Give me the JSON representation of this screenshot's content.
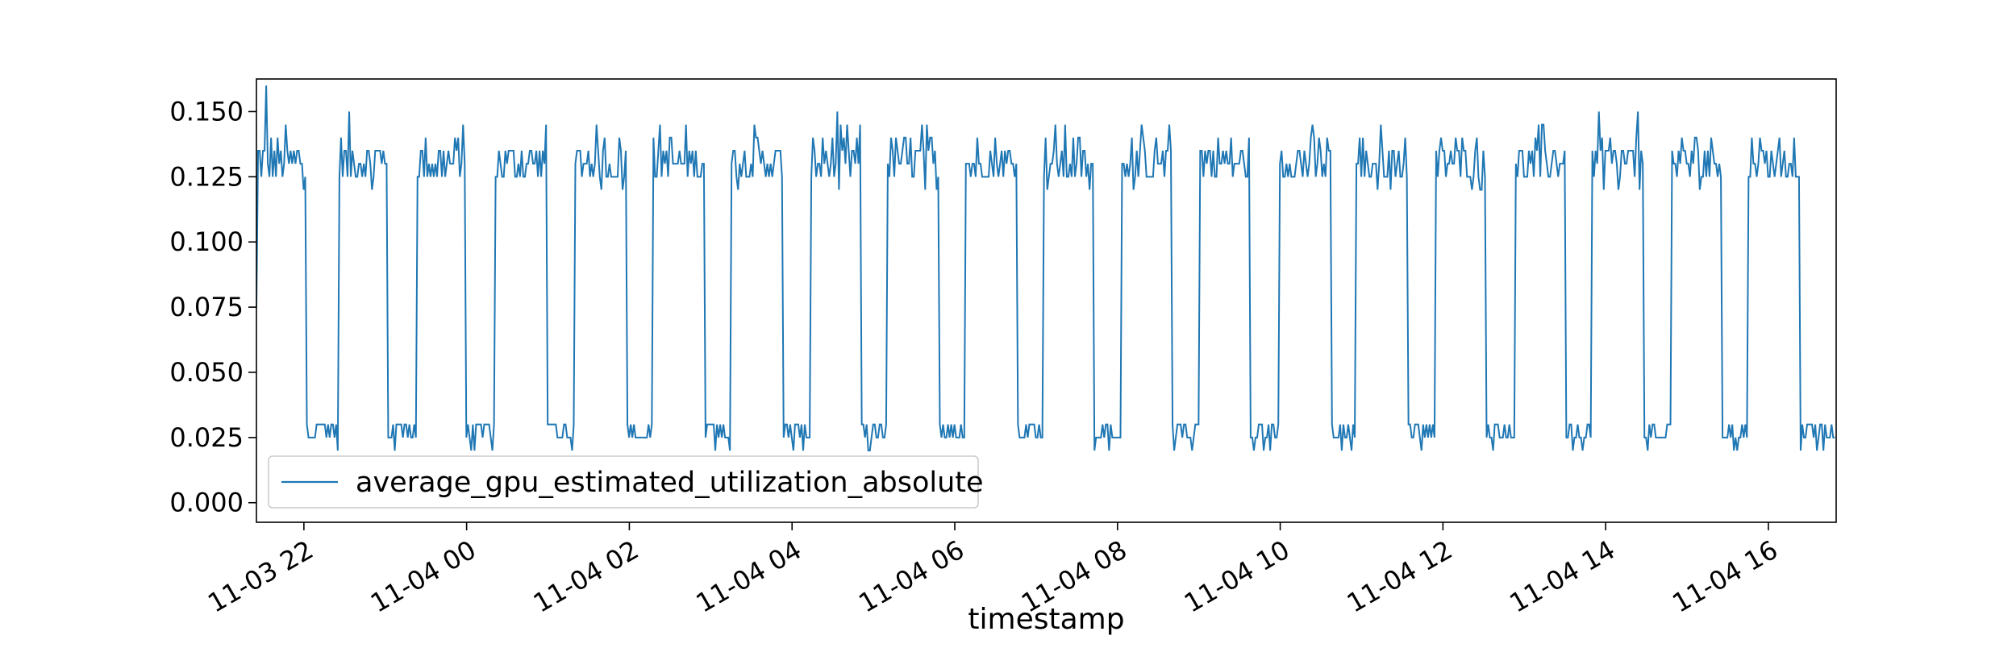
{
  "chart_data": {
    "type": "line",
    "xlabel": "timestamp",
    "ylabel": "",
    "title": "",
    "ylim": [
      -0.0075,
      0.1625
    ],
    "xlim": [
      "2023-11-03 21:25",
      "2023-11-04 16:50"
    ],
    "x_ticks": [
      "11-03 22",
      "11-04 00",
      "11-04 02",
      "11-04 04",
      "11-04 06",
      "11-04 08",
      "11-04 10",
      "11-04 12",
      "11-04 14",
      "11-04 16"
    ],
    "y_ticks": [
      "0.000",
      "0.025",
      "0.050",
      "0.075",
      "0.100",
      "0.125",
      "0.150"
    ],
    "grid": false,
    "legend_position": "lower-left",
    "series": [
      {
        "name": "average_gpu_estimated_utilization_absolute",
        "color": "#1f77b4",
        "high_level": 0.13,
        "low_level": 0.027,
        "high_periods": [
          {
            "start": "2023-11-03 21:25",
            "end": "2023-11-03 22:01"
          },
          {
            "start": "2023-11-03 22:25",
            "end": "2023-11-03 23:02"
          },
          {
            "start": "2023-11-03 23:23",
            "end": "2023-11-03 23:59"
          },
          {
            "start": "2023-11-04 00:21",
            "end": "2023-11-04 00:59"
          },
          {
            "start": "2023-11-04 01:20",
            "end": "2023-11-04 01:58"
          },
          {
            "start": "2023-11-04 02:17",
            "end": "2023-11-04 02:55"
          },
          {
            "start": "2023-11-04 03:15",
            "end": "2023-11-04 03:53"
          },
          {
            "start": "2023-11-04 04:13",
            "end": "2023-11-04 04:51"
          },
          {
            "start": "2023-11-04 05:10",
            "end": "2023-11-04 05:48"
          },
          {
            "start": "2023-11-04 06:07",
            "end": "2023-11-04 06:46"
          },
          {
            "start": "2023-11-04 07:05",
            "end": "2023-11-04 07:42"
          },
          {
            "start": "2023-11-04 08:03",
            "end": "2023-11-04 08:40"
          },
          {
            "start": "2023-11-04 09:00",
            "end": "2023-11-04 09:38"
          },
          {
            "start": "2023-11-04 09:59",
            "end": "2023-11-04 10:37"
          },
          {
            "start": "2023-11-04 10:56",
            "end": "2023-11-04 11:34"
          },
          {
            "start": "2023-11-04 11:54",
            "end": "2023-11-04 12:32"
          },
          {
            "start": "2023-11-04 12:53",
            "end": "2023-11-04 13:30"
          },
          {
            "start": "2023-11-04 13:50",
            "end": "2023-11-04 14:28"
          },
          {
            "start": "2023-11-04 14:48",
            "end": "2023-11-04 15:25"
          },
          {
            "start": "2023-11-04 15:45",
            "end": "2023-11-04 16:23"
          }
        ],
        "first_value": 0.075,
        "max_value": 0.16
      }
    ]
  }
}
